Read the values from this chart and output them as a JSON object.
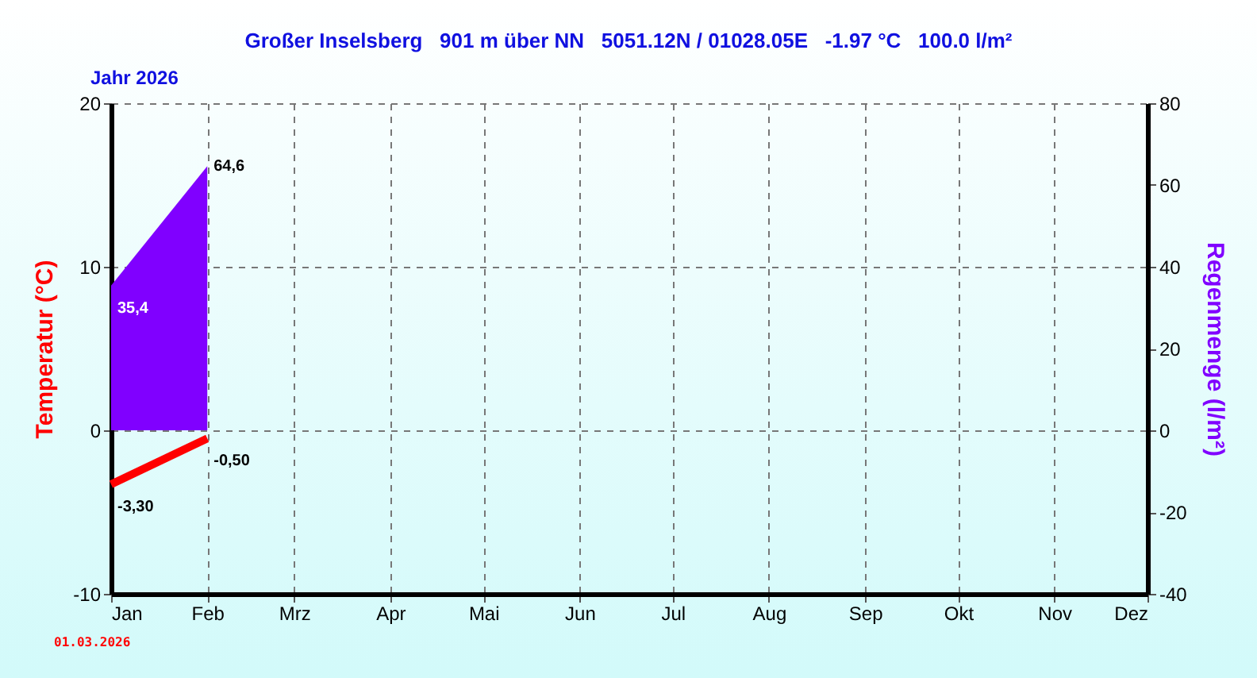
{
  "chart_data": {
    "type": "line",
    "title": "Großer Inselsberg   901 m über NN   5051.12N / 01028.05E   -1.97 °C   100.0 l/m²",
    "subtitle": "Jahr 2026",
    "ylabel": "Temperatur (°C)",
    "y2label": "Regenmenge (l/m²)",
    "annotations": [
      "01.03.2026"
    ],
    "xlim": [
      "2026-01-01",
      "2026-12-01"
    ],
    "xticks": [
      {
        "value": "2026-01-01",
        "label": "Jan"
      },
      {
        "value": "2026-02-01",
        "label": "Feb"
      },
      {
        "value": "2026-03-01",
        "label": "Mrz"
      },
      {
        "value": "2026-04-01",
        "label": "Apr"
      },
      {
        "value": "2026-05-01",
        "label": "Mai"
      },
      {
        "value": "2026-06-01",
        "label": "Jun"
      },
      {
        "value": "2026-07-01",
        "label": "Jul"
      },
      {
        "value": "2026-08-01",
        "label": "Aug"
      },
      {
        "value": "2026-09-01",
        "label": "Sep"
      },
      {
        "value": "2026-10-01",
        "label": "Okt"
      },
      {
        "value": "2026-11-01",
        "label": "Nov"
      },
      {
        "value": "2026-12-01",
        "label": "Dez"
      }
    ],
    "ylim": [
      -10,
      20
    ],
    "yticks": [
      -10,
      0,
      10,
      20
    ],
    "y2lim": [
      -40,
      80
    ],
    "y2ticks": [
      -40,
      -20,
      0,
      20,
      40,
      60,
      80
    ],
    "grid": true,
    "series": [
      {
        "color": "#ff0000",
        "x": [
          "2026-01-01",
          "2026-02-01"
        ],
        "values": [
          -3.3,
          -0.5
        ],
        "value_labels": [
          "-3,30",
          "-0,50"
        ]
      },
      {
        "type": "area",
        "axis": "y2",
        "color": "#8000ff",
        "x": [
          "2026-01-01",
          "2026-02-01"
        ],
        "values": [
          35.4,
          64.6
        ],
        "value_labels": [
          "35,4",
          "64,6"
        ]
      }
    ]
  }
}
